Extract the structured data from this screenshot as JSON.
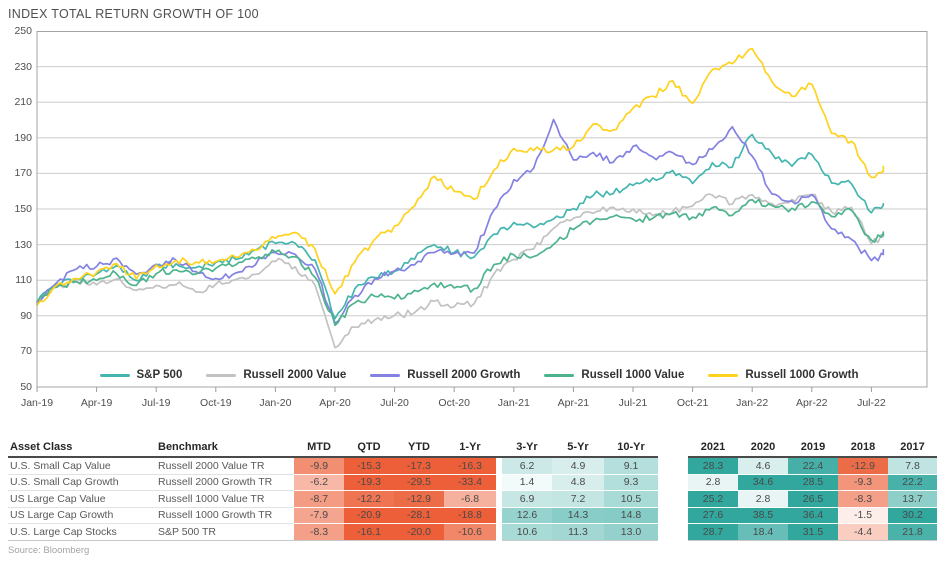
{
  "title": "INDEX TOTAL RETURN GROWTH OF 100",
  "source": "Source: Bloomberg",
  "chart_data": {
    "type": "line",
    "title": "INDEX TOTAL RETURN GROWTH OF 100",
    "ylim": [
      50,
      250
    ],
    "ytick_step": 20,
    "grid": "horizontal",
    "legend_position": "bottom-inside",
    "x_tick_labels": [
      "Jan-19",
      "Apr-19",
      "Jul-19",
      "Oct-19",
      "Jan-20",
      "Apr-20",
      "Jul-20",
      "Oct-20",
      "Jan-21",
      "Apr-21",
      "Jul-21",
      "Oct-21",
      "Jan-22",
      "Apr-22",
      "Jul-22"
    ],
    "x_months_total": 44.8,
    "x_last_data_month": 42.6,
    "series": [
      {
        "name": "S&P 500",
        "color": "#45b6af",
        "values": [
          98,
          108,
          111,
          113,
          118,
          110,
          118,
          119,
          117,
          120,
          122,
          127,
          131,
          131,
          121,
          88,
          105,
          112,
          115,
          122,
          130,
          126,
          123,
          136,
          142,
          140,
          144,
          150,
          158,
          159,
          163,
          167,
          172,
          164,
          176,
          174,
          192,
          181,
          174,
          181,
          165,
          164,
          148,
          153
        ]
      },
      {
        "name": "Russell 2000 Value",
        "color": "#c2c2c2",
        "values": [
          97,
          107,
          109,
          107,
          111,
          104,
          107,
          108,
          103,
          108,
          110,
          113,
          121,
          117,
          107,
          72,
          84,
          88,
          90,
          92,
          98,
          95,
          97,
          113,
          122,
          128,
          139,
          145,
          148,
          151,
          150,
          146,
          149,
          152,
          158,
          153,
          158,
          153,
          155,
          158,
          148,
          151,
          131,
          137
        ]
      },
      {
        "name": "Russell 2000 Growth",
        "color": "#8481e2",
        "values": [
          98,
          109,
          116,
          118,
          122,
          113,
          119,
          121,
          115,
          111,
          114,
          119,
          126,
          125,
          116,
          86,
          101,
          111,
          115,
          119,
          126,
          125,
          125,
          149,
          166,
          173,
          200,
          178,
          182,
          176,
          185,
          179,
          182,
          175,
          184,
          196,
          180,
          158,
          154,
          158,
          139,
          133,
          121,
          126
        ]
      },
      {
        "name": "Russell 1000 Value",
        "color": "#4db38c",
        "values": [
          98,
          106,
          109,
          110,
          114,
          107,
          114,
          116,
          113,
          117,
          119,
          122,
          126,
          123,
          112,
          85,
          97,
          101,
          100,
          104,
          108,
          106,
          105,
          119,
          124,
          123,
          130,
          139,
          143,
          146,
          144,
          145,
          148,
          145,
          151,
          146,
          155,
          152,
          150,
          154,
          146,
          149,
          132,
          137
        ]
      },
      {
        "name": "Russell 1000 Growth",
        "color": "#ffd21e",
        "values": [
          96,
          107,
          111,
          114,
          119,
          111,
          118,
          121,
          120,
          120,
          123,
          127,
          134,
          137,
          127,
          102,
          120,
          133,
          140,
          152,
          168,
          160,
          155,
          172,
          184,
          183,
          183,
          185,
          198,
          194,
          207,
          213,
          222,
          209,
          228,
          232,
          240,
          221,
          213,
          220,
          193,
          188,
          168,
          174
        ]
      }
    ]
  },
  "table": {
    "headers": [
      "Asset Class",
      "Benchmark",
      "MTD",
      "QTD",
      "YTD",
      "1-Yr",
      "3-Yr",
      "5-Yr",
      "10-Yr",
      "2021",
      "2020",
      "2019",
      "2018",
      "2017"
    ],
    "rows": [
      {
        "asset": "U.S. Small Cap Value",
        "benchmark": "Russell 2000 Value TR",
        "values": [
          -9.9,
          -15.3,
          -17.3,
          -16.3,
          6.2,
          4.9,
          9.1,
          28.3,
          4.6,
          22.4,
          -12.9,
          7.8
        ]
      },
      {
        "asset": "U.S. Small Cap Growth",
        "benchmark": "Russell 2000 Growth TR",
        "values": [
          -6.2,
          -19.3,
          -29.5,
          -33.4,
          1.4,
          4.8,
          9.3,
          2.8,
          34.6,
          28.5,
          -9.3,
          22.2
        ]
      },
      {
        "asset": "US Large Cap Value",
        "benchmark": "Russell 1000 Value TR",
        "values": [
          -8.7,
          -12.2,
          -12.9,
          -6.8,
          6.9,
          7.2,
          10.5,
          25.2,
          2.8,
          26.5,
          -8.3,
          13.7
        ]
      },
      {
        "asset": "US Large Cap Growth",
        "benchmark": "Russell 1000 Growth TR",
        "values": [
          -7.9,
          -20.9,
          -28.1,
          -18.8,
          12.6,
          14.3,
          14.8,
          27.6,
          38.5,
          36.4,
          -1.5,
          30.2
        ]
      },
      {
        "asset": "U.S. Large Cap Stocks",
        "benchmark": "S&P 500 TR",
        "values": [
          -8.3,
          -16.1,
          -20.0,
          -10.6,
          10.6,
          11.3,
          13.0,
          28.7,
          18.4,
          31.5,
          -4.4,
          21.8
        ]
      }
    ],
    "heat": {
      "positive_base": "#31a79e",
      "negative_base": "#ec5f38",
      "positive_cap": 25,
      "negative_cap": 14
    }
  }
}
